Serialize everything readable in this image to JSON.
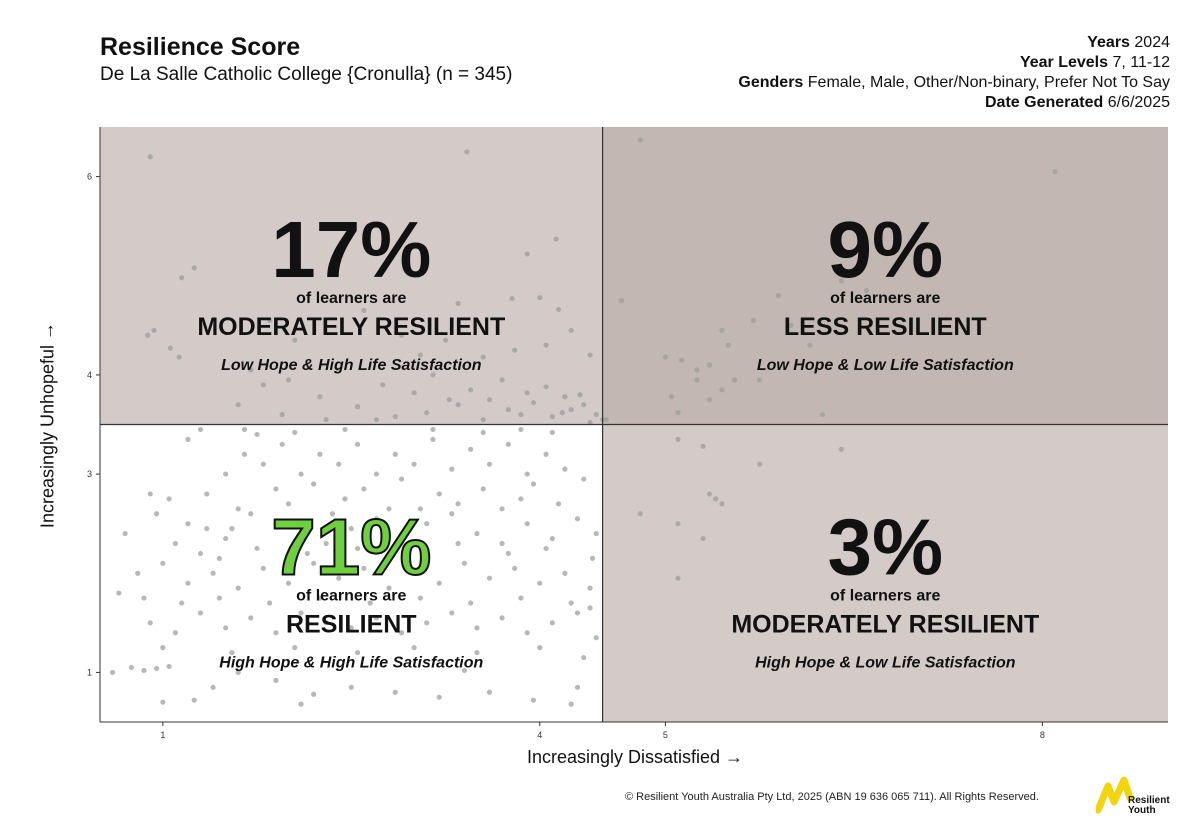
{
  "header": {
    "title": "Resilience Score",
    "subtitle": "De La Salle Catholic College {Cronulla} (n = 345)",
    "meta": [
      {
        "label": "Years",
        "value": "2024"
      },
      {
        "label": "Year Levels",
        "value": "7, 11-12"
      },
      {
        "label": "Genders",
        "value": "Female, Male, Other/Non-binary, Prefer Not To Say"
      },
      {
        "label": "Date Generated",
        "value": "6/6/2025"
      }
    ]
  },
  "footer": {
    "copyright": "© Resilient Youth Australia Pty Ltd, 2025 (ABN 19 636 065 711). All Rights Reserved.",
    "logo_text_line1": "Resilient",
    "logo_text_line2": "Youth"
  },
  "chart_data": {
    "type": "scatter",
    "xlabel": "Increasingly Dissatisfied →",
    "ylabel": "Increasingly Unhopeful →",
    "xlim": [
      0.5,
      9
    ],
    "ylim": [
      0.5,
      6.5
    ],
    "xticks": [
      1,
      4,
      5,
      8
    ],
    "yticks": [
      1,
      3,
      4,
      6
    ],
    "threshold_x": 4.5,
    "threshold_y": 3.5,
    "grid": false,
    "quadrants": [
      {
        "id": "top-left",
        "percent": "17%",
        "intro": "of learners are",
        "label": "MODERATELY RESILIENT",
        "description": "Low Hope & High Life Satisfaction",
        "fill": "#d4cbc9",
        "percent_color": "#111111"
      },
      {
        "id": "top-right",
        "percent": "9%",
        "intro": "of learners are",
        "label": "LESS RESILIENT",
        "description": "Low Hope & Low Life Satisfaction",
        "fill": "#c2b7b3",
        "percent_color": "#111111"
      },
      {
        "id": "bottom-left",
        "percent": "71%",
        "intro": "of learners are",
        "label": "RESILIENT",
        "description": "High Hope & High Life Satisfaction",
        "fill": "#ffffff",
        "percent_color": "#6fcf3f"
      },
      {
        "id": "bottom-right",
        "percent": "3%",
        "intro": "of learners are",
        "label": "MODERATELY RESILIENT",
        "description": "High Hope & Low Life Satisfaction",
        "fill": "#d4cbc9",
        "percent_color": "#111111"
      }
    ],
    "points": [
      [
        0.9,
        6.2
      ],
      [
        0.88,
        4.4
      ],
      [
        1.15,
        4.98
      ],
      [
        1.25,
        5.08
      ],
      [
        0.93,
        4.45
      ],
      [
        1.06,
        4.27
      ],
      [
        1.13,
        4.18
      ],
      [
        3.42,
        6.25
      ],
      [
        4.13,
        5.37
      ],
      [
        3.9,
        5.22
      ],
      [
        3.78,
        4.77
      ],
      [
        4.0,
        4.78
      ],
      [
        4.15,
        4.66
      ],
      [
        3.35,
        4.72
      ],
      [
        1.85,
        4.55
      ],
      [
        2.05,
        4.35
      ],
      [
        2.6,
        4.65
      ],
      [
        2.9,
        4.4
      ],
      [
        3.05,
        4.2
      ],
      [
        3.25,
        4.35
      ],
      [
        3.55,
        4.18
      ],
      [
        3.8,
        4.25
      ],
      [
        4.05,
        4.3
      ],
      [
        4.25,
        4.45
      ],
      [
        4.4,
        4.2
      ],
      [
        1.7,
        4.05
      ],
      [
        2.0,
        3.95
      ],
      [
        2.4,
        4.05
      ],
      [
        2.75,
        3.9
      ],
      [
        3.15,
        4.0
      ],
      [
        3.45,
        3.85
      ],
      [
        3.7,
        3.95
      ],
      [
        3.9,
        3.82
      ],
      [
        4.05,
        3.88
      ],
      [
        4.2,
        3.78
      ],
      [
        4.35,
        3.7
      ],
      [
        4.45,
        3.6
      ],
      [
        1.6,
        3.7
      ],
      [
        1.95,
        3.6
      ],
      [
        2.3,
        3.55
      ],
      [
        2.55,
        3.68
      ],
      [
        2.85,
        3.58
      ],
      [
        3.1,
        3.62
      ],
      [
        3.35,
        3.7
      ],
      [
        3.55,
        3.55
      ],
      [
        3.75,
        3.65
      ],
      [
        3.95,
        3.72
      ],
      [
        4.1,
        3.58
      ],
      [
        4.25,
        3.65
      ],
      [
        4.4,
        3.52
      ],
      [
        4.5,
        3.55
      ],
      [
        3.0,
        3.82
      ],
      [
        2.25,
        3.78
      ],
      [
        3.28,
        3.75
      ],
      [
        3.6,
        3.75
      ],
      [
        3.85,
        3.6
      ],
      [
        4.18,
        3.62
      ],
      [
        4.32,
        3.8
      ],
      [
        2.7,
        3.55
      ],
      [
        1.8,
        3.9
      ],
      [
        4.8,
        6.37
      ],
      [
        4.65,
        4.75
      ],
      [
        5.13,
        4.15
      ],
      [
        5.25,
        4.05
      ],
      [
        5.35,
        4.1
      ],
      [
        5.25,
        3.95
      ],
      [
        5.45,
        3.85
      ],
      [
        5.55,
        3.95
      ],
      [
        5.35,
        3.75
      ],
      [
        5.05,
        3.78
      ],
      [
        5.45,
        4.45
      ],
      [
        5.5,
        4.3
      ],
      [
        5.75,
        3.95
      ],
      [
        5.7,
        4.55
      ],
      [
        5.9,
        4.8
      ],
      [
        6.0,
        4.5
      ],
      [
        6.15,
        4.3
      ],
      [
        6.4,
        4.95
      ],
      [
        6.6,
        4.85
      ],
      [
        6.85,
        4.75
      ],
      [
        6.2,
        4.05
      ],
      [
        5.1,
        3.62
      ],
      [
        4.53,
        3.55
      ],
      [
        5.0,
        4.18
      ],
      [
        8.1,
        6.05
      ],
      [
        6.4,
        3.25
      ],
      [
        6.25,
        3.6
      ],
      [
        5.1,
        3.35
      ],
      [
        5.3,
        3.28
      ],
      [
        5.35,
        2.8
      ],
      [
        5.4,
        2.75
      ],
      [
        5.45,
        2.7
      ],
      [
        4.8,
        2.6
      ],
      [
        5.1,
        2.5
      ],
      [
        5.3,
        2.35
      ],
      [
        5.1,
        1.95
      ],
      [
        5.75,
        3.1
      ],
      [
        0.5,
        2.6
      ],
      [
        0.7,
        2.4
      ],
      [
        0.9,
        2.8
      ],
      [
        0.95,
        2.6
      ],
      [
        1.05,
        2.75
      ],
      [
        1.2,
        2.5
      ],
      [
        1.35,
        2.45
      ],
      [
        1.5,
        2.35
      ],
      [
        1.7,
        2.6
      ],
      [
        1.9,
        2.5
      ],
      [
        2.1,
        2.4
      ],
      [
        2.3,
        2.3
      ],
      [
        2.5,
        2.45
      ],
      [
        2.7,
        2.55
      ],
      [
        2.9,
        2.35
      ],
      [
        3.1,
        2.5
      ],
      [
        3.3,
        2.6
      ],
      [
        3.5,
        2.4
      ],
      [
        3.7,
        2.3
      ],
      [
        3.9,
        2.5
      ],
      [
        4.1,
        2.35
      ],
      [
        4.3,
        2.55
      ],
      [
        4.45,
        2.4
      ],
      [
        0.8,
        2.0
      ],
      [
        1.0,
        2.1
      ],
      [
        1.2,
        1.9
      ],
      [
        1.4,
        2.0
      ],
      [
        1.6,
        1.85
      ],
      [
        1.8,
        2.05
      ],
      [
        2.0,
        1.9
      ],
      [
        2.2,
        2.1
      ],
      [
        2.4,
        1.95
      ],
      [
        2.6,
        2.05
      ],
      [
        2.8,
        1.85
      ],
      [
        3.0,
        2.0
      ],
      [
        3.2,
        1.9
      ],
      [
        3.4,
        2.1
      ],
      [
        3.6,
        1.95
      ],
      [
        3.8,
        2.05
      ],
      [
        4.0,
        1.9
      ],
      [
        4.2,
        2.0
      ],
      [
        4.4,
        1.85
      ],
      [
        0.9,
        1.5
      ],
      [
        1.1,
        1.4
      ],
      [
        1.3,
        1.6
      ],
      [
        1.5,
        1.45
      ],
      [
        1.7,
        1.55
      ],
      [
        1.9,
        1.4
      ],
      [
        2.1,
        1.6
      ],
      [
        2.3,
        1.5
      ],
      [
        2.5,
        1.45
      ],
      [
        2.7,
        1.55
      ],
      [
        2.9,
        1.4
      ],
      [
        3.1,
        1.5
      ],
      [
        3.3,
        1.6
      ],
      [
        3.5,
        1.45
      ],
      [
        3.7,
        1.55
      ],
      [
        3.9,
        1.4
      ],
      [
        4.1,
        1.5
      ],
      [
        4.3,
        1.6
      ],
      [
        4.45,
        1.35
      ],
      [
        0.6,
        1.0
      ],
      [
        0.75,
        1.05
      ],
      [
        0.85,
        1.02
      ],
      [
        0.95,
        1.04
      ],
      [
        1.05,
        1.06
      ],
      [
        1.25,
        0.72
      ],
      [
        1.4,
        0.85
      ],
      [
        1.6,
        1.0
      ],
      [
        1.9,
        0.92
      ],
      [
        2.2,
        0.78
      ],
      [
        2.5,
        0.85
      ],
      [
        2.85,
        0.8
      ],
      [
        3.2,
        0.75
      ],
      [
        3.6,
        0.8
      ],
      [
        3.95,
        0.72
      ],
      [
        4.3,
        0.85
      ],
      [
        4.25,
        0.68
      ],
      [
        1.0,
        0.7
      ],
      [
        2.1,
        0.68
      ],
      [
        3.4,
        1.02
      ],
      [
        1.35,
        2.8
      ],
      [
        1.5,
        3.0
      ],
      [
        1.65,
        3.2
      ],
      [
        1.8,
        3.1
      ],
      [
        1.95,
        3.3
      ],
      [
        2.1,
        3.0
      ],
      [
        2.25,
        3.2
      ],
      [
        2.4,
        3.1
      ],
      [
        2.55,
        3.3
      ],
      [
        2.7,
        3.0
      ],
      [
        2.85,
        3.2
      ],
      [
        3.0,
        3.1
      ],
      [
        3.15,
        3.35
      ],
      [
        3.3,
        3.05
      ],
      [
        3.45,
        3.25
      ],
      [
        3.6,
        3.1
      ],
      [
        3.75,
        3.3
      ],
      [
        3.9,
        3.0
      ],
      [
        4.05,
        3.2
      ],
      [
        4.2,
        3.05
      ],
      [
        1.2,
        3.35
      ],
      [
        1.9,
        2.85
      ],
      [
        2.6,
        2.85
      ],
      [
        3.2,
        2.8
      ],
      [
        3.85,
        2.75
      ],
      [
        4.35,
        2.95
      ],
      [
        1.6,
        2.65
      ],
      [
        2.0,
        2.7
      ],
      [
        2.45,
        2.75
      ],
      [
        2.8,
        2.65
      ],
      [
        3.35,
        2.7
      ],
      [
        3.7,
        2.65
      ],
      [
        4.15,
        2.7
      ],
      [
        1.75,
        2.25
      ],
      [
        2.15,
        2.2
      ],
      [
        2.55,
        2.25
      ],
      [
        2.95,
        2.2
      ],
      [
        3.35,
        2.3
      ],
      [
        3.75,
        2.2
      ],
      [
        4.05,
        2.25
      ],
      [
        1.45,
        2.15
      ],
      [
        2.35,
        2.6
      ],
      [
        3.05,
        2.65
      ],
      [
        3.55,
        2.85
      ],
      [
        1.1,
        2.3
      ],
      [
        1.3,
        2.2
      ],
      [
        0.65,
        1.8
      ],
      [
        0.85,
        1.75
      ],
      [
        1.15,
        1.7
      ],
      [
        1.45,
        1.75
      ],
      [
        1.85,
        1.7
      ],
      [
        2.25,
        1.75
      ],
      [
        2.65,
        1.7
      ],
      [
        3.05,
        1.75
      ],
      [
        3.45,
        1.7
      ],
      [
        3.85,
        1.75
      ],
      [
        4.25,
        1.7
      ],
      [
        4.4,
        1.65
      ],
      [
        1.0,
        1.25
      ],
      [
        1.55,
        1.2
      ],
      [
        2.05,
        1.25
      ],
      [
        2.55,
        1.2
      ],
      [
        3.0,
        1.25
      ],
      [
        3.5,
        1.2
      ],
      [
        4.0,
        1.25
      ],
      [
        4.35,
        1.15
      ],
      [
        1.75,
        3.4
      ],
      [
        2.45,
        3.45
      ],
      [
        3.15,
        3.45
      ],
      [
        3.85,
        3.45
      ],
      [
        1.3,
        3.45
      ],
      [
        2.9,
        2.95
      ],
      [
        3.95,
        2.9
      ],
      [
        2.2,
        2.9
      ],
      [
        1.55,
        2.45
      ],
      [
        4.42,
        2.15
      ],
      [
        1.65,
        3.45
      ],
      [
        2.05,
        3.42
      ],
      [
        3.55,
        3.42
      ],
      [
        4.1,
        3.42
      ]
    ]
  }
}
